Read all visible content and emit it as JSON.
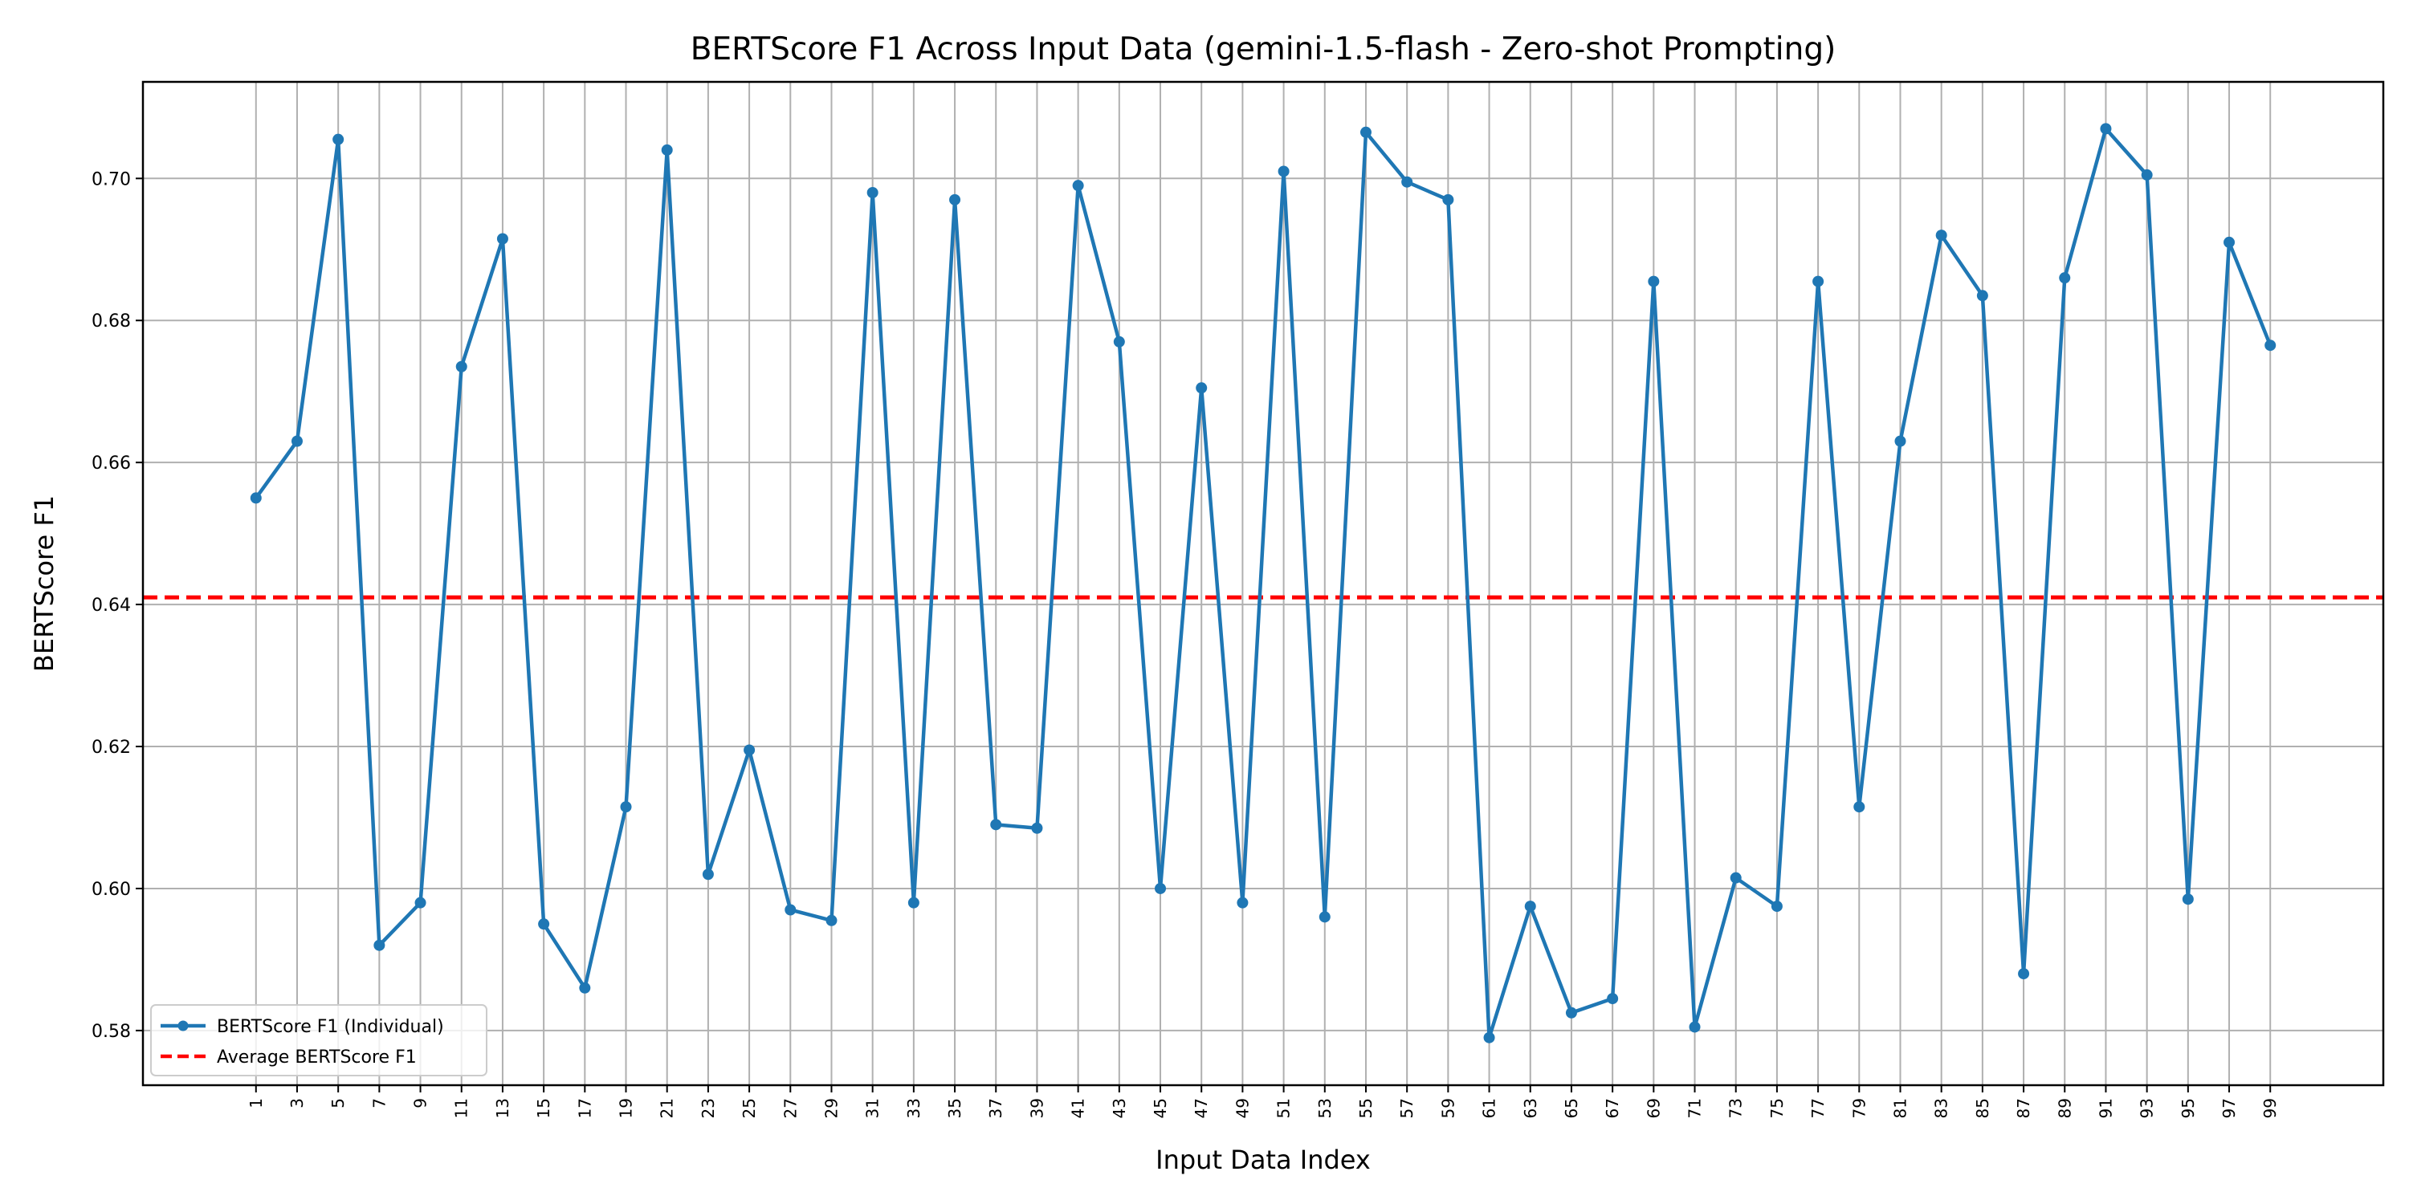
{
  "chart_data": {
    "type": "line",
    "title": "BERTScore F1 Across Input Data (gemini-1.5-flash - Zero-shot Prompting)",
    "xlabel": "Input Data Index",
    "ylabel": "BERTScore F1",
    "x": [
      1,
      3,
      5,
      7,
      9,
      11,
      13,
      15,
      17,
      19,
      21,
      23,
      25,
      27,
      29,
      31,
      33,
      35,
      37,
      39,
      41,
      43,
      45,
      47,
      49,
      51,
      53,
      55,
      57,
      59,
      61,
      63,
      65,
      67,
      69,
      71,
      73,
      75,
      77,
      79,
      81,
      83,
      85,
      87,
      89,
      91,
      93,
      95,
      97,
      99
    ],
    "xlim": [
      -4.5,
      104.5
    ],
    "ylim": [
      0.5723,
      0.7136
    ],
    "yticks": [
      0.58,
      0.6,
      0.62,
      0.64,
      0.66,
      0.68,
      0.7
    ],
    "ytick_labels": [
      "0.58",
      "0.60",
      "0.62",
      "0.64",
      "0.66",
      "0.68",
      "0.70"
    ],
    "xtick_labels": [
      "1",
      "3",
      "5",
      "7",
      "9",
      "11",
      "13",
      "15",
      "17",
      "19",
      "21",
      "23",
      "25",
      "27",
      "29",
      "31",
      "33",
      "35",
      "37",
      "39",
      "41",
      "43",
      "45",
      "47",
      "49",
      "51",
      "53",
      "55",
      "57",
      "59",
      "61",
      "63",
      "65",
      "67",
      "69",
      "71",
      "73",
      "75",
      "77",
      "79",
      "81",
      "83",
      "85",
      "87",
      "89",
      "91",
      "93",
      "95",
      "97",
      "99"
    ],
    "grid": true,
    "legend_position": "lower-left",
    "series": [
      {
        "name": "BERTScore F1 (Individual)",
        "style": "line-with-markers",
        "color": "#1f77b4",
        "values": [
          0.655,
          0.663,
          0.7055,
          0.592,
          0.598,
          0.6735,
          0.6915,
          0.595,
          0.586,
          0.6115,
          0.704,
          0.602,
          0.6195,
          0.597,
          0.5955,
          0.698,
          0.598,
          0.697,
          0.609,
          0.6085,
          0.699,
          0.677,
          0.6,
          0.6705,
          0.598,
          0.701,
          0.596,
          0.7065,
          0.6995,
          0.697,
          0.579,
          0.5975,
          0.5825,
          0.5845,
          0.6855,
          0.5805,
          0.6015,
          0.5975,
          0.6855,
          0.6115,
          0.663,
          0.692,
          0.6835,
          0.588,
          0.686,
          0.707,
          0.7005,
          0.5985,
          0.691,
          0.6765
        ]
      },
      {
        "name": "Average BERTScore F1",
        "style": "dashed",
        "color": "#ff0000",
        "value": 0.641
      }
    ]
  }
}
